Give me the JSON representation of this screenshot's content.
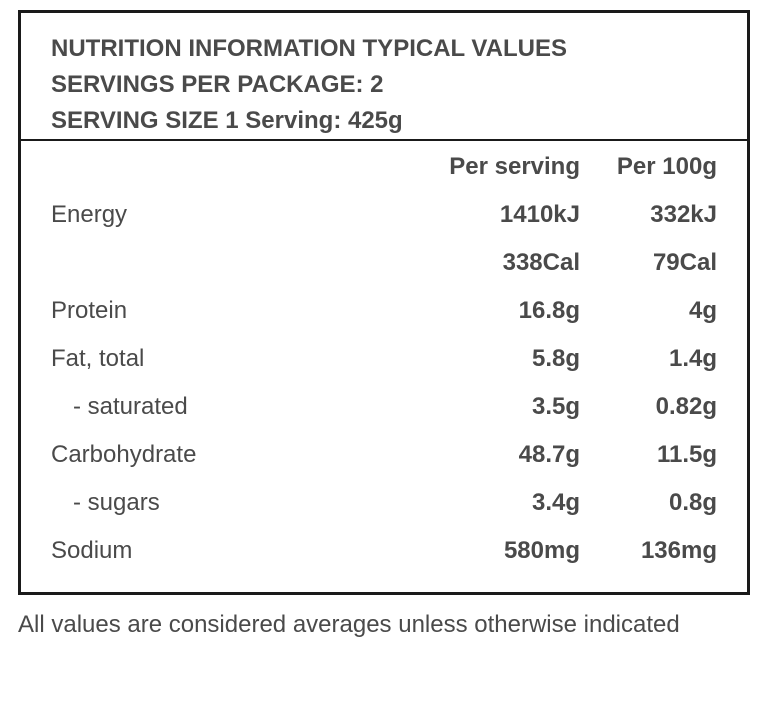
{
  "header": {
    "line1": "NUTRITION INFORMATION TYPICAL VALUES",
    "line2": "SERVINGS PER PACKAGE: 2",
    "line3": "SERVING SIZE 1 Serving: 425g"
  },
  "table": {
    "columns": [
      "",
      "Per serving",
      "Per 100g"
    ],
    "rows": [
      {
        "label": "Energy",
        "per_serving": "1410kJ",
        "per_100g": "332kJ"
      },
      {
        "label": "",
        "per_serving": "338Cal",
        "per_100g": "79Cal"
      },
      {
        "label": "Protein",
        "per_serving": "16.8g",
        "per_100g": "4g"
      },
      {
        "label": "Fat, total",
        "per_serving": "5.8g",
        "per_100g": "1.4g"
      },
      {
        "label": "- saturated",
        "per_serving": "3.5g",
        "per_100g": "0.82g"
      },
      {
        "label": "Carbohydrate",
        "per_serving": "48.7g",
        "per_100g": "11.5g"
      },
      {
        "label": "- sugars",
        "per_serving": "3.4g",
        "per_100g": "0.8g"
      },
      {
        "label": "Sodium",
        "per_serving": "580mg",
        "per_100g": "136mg"
      }
    ]
  },
  "footnote": "All values are considered averages unless otherwise indicated"
}
